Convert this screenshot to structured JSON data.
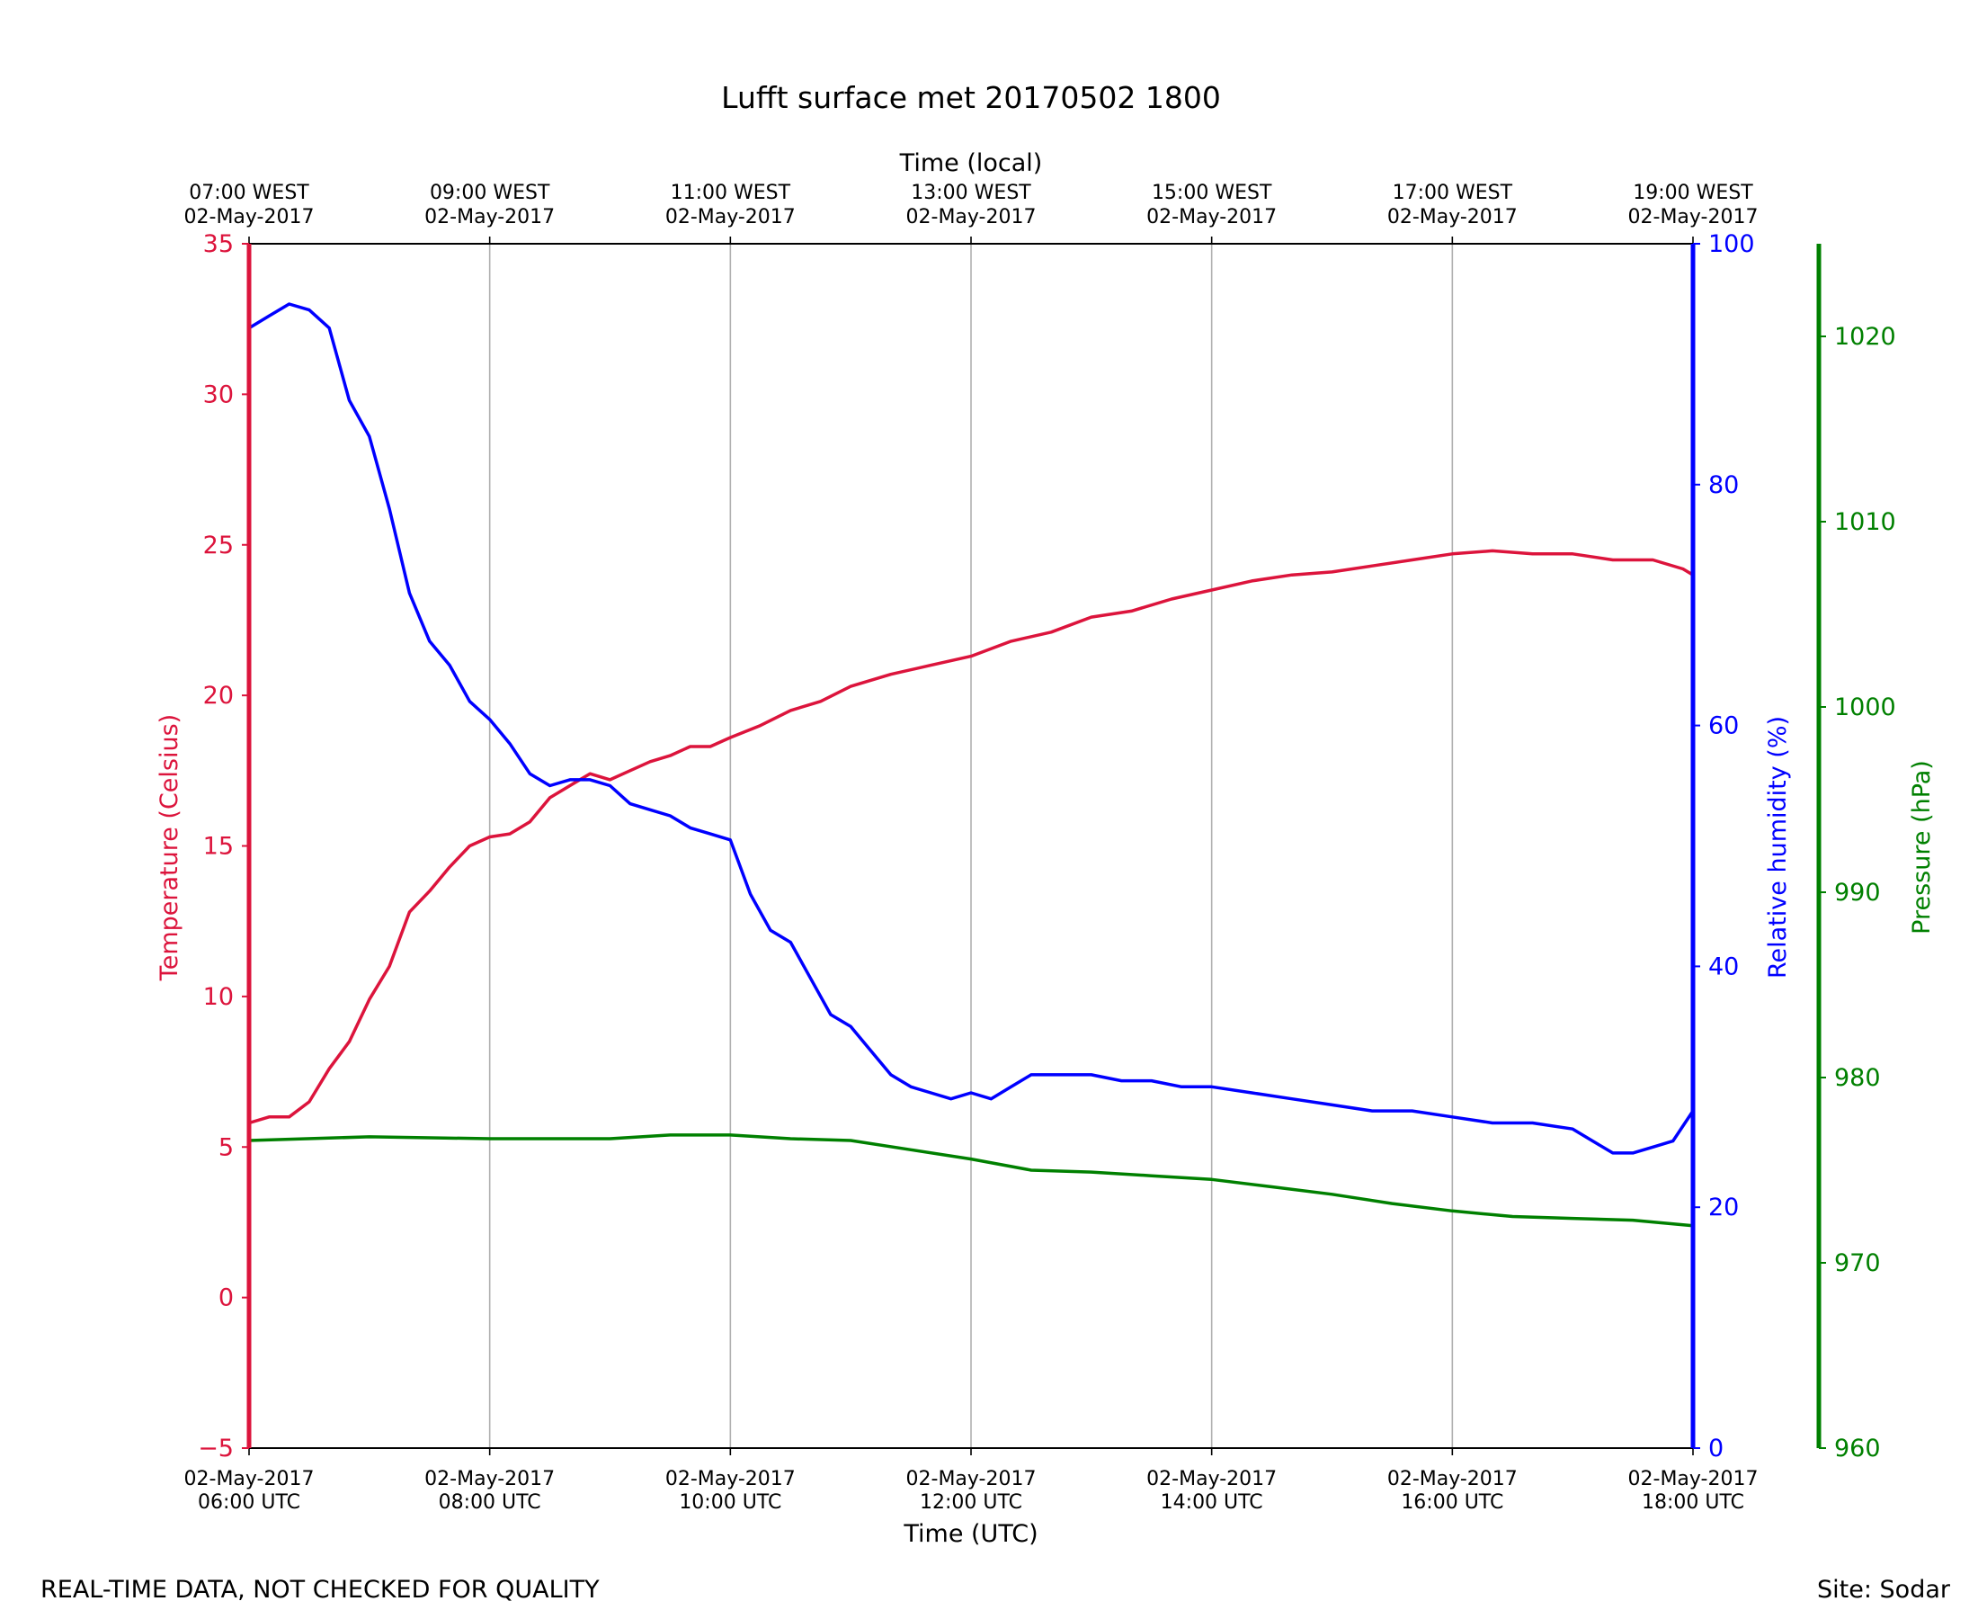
{
  "title": "Lufft surface met 20170502 1800",
  "footer": {
    "left": "REAL-TIME DATA, NOT CHECKED FOR QUALITY",
    "right": "Site: Sodar"
  },
  "colors": {
    "temperature": "#dc143c",
    "humidity": "#0000ff",
    "pressure": "#008000",
    "grid": "#b0b0b0",
    "frame": "#000000"
  },
  "chart_data": {
    "type": "line",
    "title": "Lufft surface met 20170502 1800",
    "xlabel_bottom": "Time (UTC)",
    "xlabel_top": "Time (local)",
    "x_range": [
      "02-May-2017 06:00 UTC",
      "02-May-2017 18:00 UTC"
    ],
    "x_ticks_bottom": [
      {
        "date": "02-May-2017",
        "time": "06:00 UTC"
      },
      {
        "date": "02-May-2017",
        "time": "08:00 UTC"
      },
      {
        "date": "02-May-2017",
        "time": "10:00 UTC"
      },
      {
        "date": "02-May-2017",
        "time": "12:00 UTC"
      },
      {
        "date": "02-May-2017",
        "time": "14:00 UTC"
      },
      {
        "date": "02-May-2017",
        "time": "16:00 UTC"
      },
      {
        "date": "02-May-2017",
        "time": "18:00 UTC"
      }
    ],
    "x_ticks_top": [
      {
        "time": "07:00 WEST",
        "date": "02-May-2017"
      },
      {
        "time": "09:00 WEST",
        "date": "02-May-2017"
      },
      {
        "time": "11:00 WEST",
        "date": "02-May-2017"
      },
      {
        "time": "13:00 WEST",
        "date": "02-May-2017"
      },
      {
        "time": "15:00 WEST",
        "date": "02-May-2017"
      },
      {
        "time": "17:00 WEST",
        "date": "02-May-2017"
      },
      {
        "time": "19:00 WEST",
        "date": "02-May-2017"
      }
    ],
    "grid": "vertical",
    "series": [
      {
        "name": "Temperature",
        "axis": "left",
        "ylabel": "Temperature (Celsius)",
        "ylim": [
          -5,
          35
        ],
        "yticks": [
          "−5",
          "0",
          "5",
          "10",
          "15",
          "20",
          "25",
          "30",
          "35"
        ],
        "points": [
          [
            "06:00",
            5.8
          ],
          [
            "06:10",
            6.0
          ],
          [
            "06:20",
            6.0
          ],
          [
            "06:30",
            6.5
          ],
          [
            "06:40",
            7.6
          ],
          [
            "06:50",
            8.5
          ],
          [
            "07:00",
            9.9
          ],
          [
            "07:10",
            11.0
          ],
          [
            "07:20",
            12.8
          ],
          [
            "07:30",
            13.5
          ],
          [
            "07:40",
            14.3
          ],
          [
            "07:50",
            15.0
          ],
          [
            "08:00",
            15.3
          ],
          [
            "08:10",
            15.4
          ],
          [
            "08:20",
            15.8
          ],
          [
            "08:30",
            16.6
          ],
          [
            "08:40",
            17.0
          ],
          [
            "08:50",
            17.4
          ],
          [
            "09:00",
            17.2
          ],
          [
            "09:10",
            17.5
          ],
          [
            "09:20",
            17.8
          ],
          [
            "09:30",
            18.0
          ],
          [
            "09:40",
            18.3
          ],
          [
            "09:50",
            18.3
          ],
          [
            "10:00",
            18.6
          ],
          [
            "10:15",
            19.0
          ],
          [
            "10:30",
            19.5
          ],
          [
            "10:45",
            19.8
          ],
          [
            "11:00",
            20.3
          ],
          [
            "11:20",
            20.7
          ],
          [
            "11:40",
            21.0
          ],
          [
            "12:00",
            21.3
          ],
          [
            "12:20",
            21.8
          ],
          [
            "12:40",
            22.1
          ],
          [
            "13:00",
            22.6
          ],
          [
            "13:20",
            22.8
          ],
          [
            "13:40",
            23.2
          ],
          [
            "14:00",
            23.5
          ],
          [
            "14:20",
            23.8
          ],
          [
            "14:40",
            24.0
          ],
          [
            "15:00",
            24.1
          ],
          [
            "15:20",
            24.3
          ],
          [
            "15:40",
            24.5
          ],
          [
            "16:00",
            24.7
          ],
          [
            "16:20",
            24.8
          ],
          [
            "16:40",
            24.7
          ],
          [
            "17:00",
            24.7
          ],
          [
            "17:20",
            24.5
          ],
          [
            "17:40",
            24.5
          ],
          [
            "17:55",
            24.2
          ],
          [
            "18:00",
            24.0
          ]
        ]
      },
      {
        "name": "Relative humidity",
        "axis": "right1",
        "ylabel": "Relative humidity (%)",
        "ylim": [
          0,
          100
        ],
        "yticks": [
          "0",
          "20",
          "40",
          "60",
          "80",
          "100"
        ],
        "points": [
          [
            "06:00",
            93
          ],
          [
            "06:10",
            94
          ],
          [
            "06:20",
            95
          ],
          [
            "06:30",
            94.5
          ],
          [
            "06:40",
            93
          ],
          [
            "06:50",
            87
          ],
          [
            "07:00",
            84
          ],
          [
            "07:10",
            78
          ],
          [
            "07:20",
            71
          ],
          [
            "07:30",
            67
          ],
          [
            "07:40",
            65
          ],
          [
            "07:50",
            62
          ],
          [
            "08:00",
            60.5
          ],
          [
            "08:10",
            58.5
          ],
          [
            "08:20",
            56
          ],
          [
            "08:30",
            55
          ],
          [
            "08:40",
            55.5
          ],
          [
            "08:50",
            55.5
          ],
          [
            "09:00",
            55
          ],
          [
            "09:10",
            53.5
          ],
          [
            "09:20",
            53
          ],
          [
            "09:30",
            52.5
          ],
          [
            "09:40",
            51.5
          ],
          [
            "09:50",
            51
          ],
          [
            "10:00",
            50.5
          ],
          [
            "10:10",
            46
          ],
          [
            "10:20",
            43
          ],
          [
            "10:30",
            42
          ],
          [
            "10:40",
            39
          ],
          [
            "10:50",
            36
          ],
          [
            "11:00",
            35
          ],
          [
            "11:10",
            33
          ],
          [
            "11:20",
            31
          ],
          [
            "11:30",
            30
          ],
          [
            "11:40",
            29.5
          ],
          [
            "11:50",
            29
          ],
          [
            "12:00",
            29.5
          ],
          [
            "12:10",
            29
          ],
          [
            "12:20",
            30
          ],
          [
            "12:30",
            31
          ],
          [
            "12:45",
            31
          ],
          [
            "13:00",
            31
          ],
          [
            "13:15",
            30.5
          ],
          [
            "13:30",
            30.5
          ],
          [
            "13:45",
            30
          ],
          [
            "14:00",
            30
          ],
          [
            "14:20",
            29.5
          ],
          [
            "14:40",
            29
          ],
          [
            "15:00",
            28.5
          ],
          [
            "15:20",
            28
          ],
          [
            "15:40",
            28
          ],
          [
            "16:00",
            27.5
          ],
          [
            "16:20",
            27
          ],
          [
            "16:40",
            27
          ],
          [
            "17:00",
            26.5
          ],
          [
            "17:10",
            25.5
          ],
          [
            "17:20",
            24.5
          ],
          [
            "17:30",
            24.5
          ],
          [
            "17:40",
            25
          ],
          [
            "17:50",
            25.5
          ],
          [
            "18:00",
            28
          ]
        ]
      },
      {
        "name": "Pressure",
        "axis": "right2",
        "ylabel": "Pressure (hPa)",
        "ylim": [
          960,
          1025
        ],
        "yticks": [
          "960",
          "970",
          "980",
          "990",
          "1000",
          "1010",
          "1020"
        ],
        "points": [
          [
            "06:00",
            976.6
          ],
          [
            "07:00",
            976.8
          ],
          [
            "08:00",
            976.7
          ],
          [
            "09:00",
            976.7
          ],
          [
            "09:30",
            976.9
          ],
          [
            "10:00",
            976.9
          ],
          [
            "10:30",
            976.7
          ],
          [
            "11:00",
            976.6
          ],
          [
            "11:30",
            976.1
          ],
          [
            "12:00",
            975.6
          ],
          [
            "12:30",
            975.0
          ],
          [
            "13:00",
            974.9
          ],
          [
            "13:30",
            974.7
          ],
          [
            "14:00",
            974.5
          ],
          [
            "14:30",
            974.1
          ],
          [
            "15:00",
            973.7
          ],
          [
            "15:30",
            973.2
          ],
          [
            "16:00",
            972.8
          ],
          [
            "16:30",
            972.5
          ],
          [
            "17:00",
            972.4
          ],
          [
            "17:30",
            972.3
          ],
          [
            "18:00",
            972.0
          ]
        ]
      }
    ]
  }
}
